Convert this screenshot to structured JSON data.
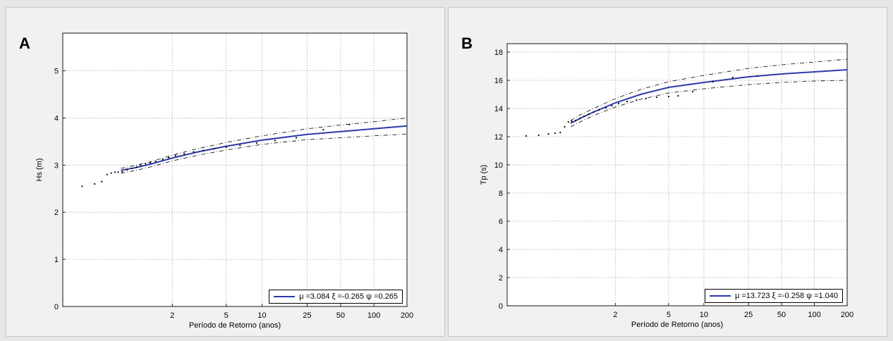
{
  "chart_data": [
    {
      "panel_label": "A",
      "type": "line",
      "title": "",
      "xlabel": "Período de Retorno (anos)",
      "ylabel": "Hs (m)",
      "x_scale": "gumbel-return-period",
      "xlim": [
        1.0,
        200
      ],
      "ylim": [
        0,
        5.8
      ],
      "xticks": [
        2,
        5,
        10,
        25,
        50,
        100,
        200
      ],
      "yticks": [
        0,
        1,
        2,
        3,
        4,
        5
      ],
      "grid": true,
      "legend_location": "bottom-right",
      "legend_text": "μ =3.084 ξ =-0.265 ψ =0.265",
      "series": [
        {
          "role": "fit",
          "style": "solid",
          "color": "#2b3aa8",
          "x": [
            1.15,
            1.3,
            1.5,
            2,
            3,
            5,
            10,
            25,
            50,
            100,
            200
          ],
          "y": [
            2.89,
            2.95,
            3.02,
            3.15,
            3.28,
            3.4,
            3.53,
            3.65,
            3.71,
            3.77,
            3.83
          ]
        },
        {
          "role": "upper-bound",
          "style": "dashed",
          "color": "#000000",
          "x": [
            1.15,
            1.3,
            1.5,
            2,
            3,
            5,
            10,
            25,
            50,
            100,
            200
          ],
          "y": [
            2.93,
            3.0,
            3.07,
            3.21,
            3.35,
            3.48,
            3.62,
            3.77,
            3.85,
            3.92,
            4.0
          ]
        },
        {
          "role": "lower-bound",
          "style": "dashed",
          "color": "#000000",
          "x": [
            1.15,
            1.3,
            1.5,
            2,
            3,
            5,
            10,
            25,
            50,
            100,
            200
          ],
          "y": [
            2.83,
            2.89,
            2.96,
            3.09,
            3.21,
            3.32,
            3.44,
            3.54,
            3.58,
            3.62,
            3.66
          ]
        },
        {
          "role": "observed",
          "style": "points",
          "color": "#000000",
          "x": [
            1.01,
            1.03,
            1.05,
            1.07,
            1.09,
            1.11,
            1.13,
            1.16,
            1.2,
            1.25,
            1.3,
            1.35,
            1.42,
            1.5,
            1.6,
            1.75,
            1.9,
            2.1,
            2.4,
            2.8,
            3.3,
            4.0,
            5.0,
            6.5,
            9.0,
            13,
            20,
            35,
            60
          ],
          "y": [
            2.55,
            2.6,
            2.65,
            2.8,
            2.83,
            2.85,
            2.85,
            2.86,
            2.9,
            2.93,
            2.96,
            3.0,
            3.03,
            3.05,
            3.08,
            3.12,
            3.16,
            3.2,
            3.24,
            3.28,
            3.31,
            3.35,
            3.38,
            3.42,
            3.47,
            3.52,
            3.58,
            3.75,
            3.86
          ]
        }
      ]
    },
    {
      "panel_label": "B",
      "type": "line",
      "title": "",
      "xlabel": "Período de Retorno (anos)",
      "ylabel": "Tp (s)",
      "x_scale": "gumbel-return-period",
      "xlim": [
        1.0,
        200
      ],
      "ylim": [
        0,
        18.6
      ],
      "xticks": [
        2,
        5,
        10,
        25,
        50,
        100,
        200
      ],
      "yticks": [
        0,
        2,
        4,
        6,
        8,
        10,
        12,
        14,
        16,
        18
      ],
      "grid": true,
      "legend_location": "bottom-right",
      "legend_text": "μ =13.723 ξ =-0.258 ψ =1.040",
      "series": [
        {
          "role": "fit",
          "style": "solid",
          "color": "#2b3aa8",
          "x": [
            1.2,
            1.3,
            1.5,
            2,
            3,
            5,
            10,
            25,
            50,
            100,
            200
          ],
          "y": [
            12.95,
            13.3,
            13.75,
            14.4,
            15.0,
            15.5,
            15.85,
            16.25,
            16.45,
            16.6,
            16.75
          ]
        },
        {
          "role": "upper-bound",
          "style": "dashed",
          "color": "#000000",
          "x": [
            1.2,
            1.3,
            1.5,
            2,
            3,
            5,
            10,
            25,
            50,
            100,
            200
          ],
          "y": [
            13.15,
            13.55,
            14.0,
            14.7,
            15.35,
            15.9,
            16.35,
            16.85,
            17.1,
            17.3,
            17.5
          ]
        },
        {
          "role": "lower-bound",
          "style": "dashed",
          "color": "#000000",
          "x": [
            1.2,
            1.3,
            1.5,
            2,
            3,
            5,
            10,
            25,
            50,
            100,
            200
          ],
          "y": [
            12.7,
            13.05,
            13.5,
            14.1,
            14.65,
            15.1,
            15.4,
            15.7,
            15.85,
            15.95,
            16.0
          ]
        },
        {
          "role": "observed",
          "style": "points",
          "color": "#000000",
          "x": [
            1.01,
            1.03,
            1.06,
            1.09,
            1.12,
            1.15,
            1.18,
            1.21,
            1.25,
            1.3,
            1.35,
            1.42,
            1.5,
            1.6,
            1.75,
            1.9,
            2.1,
            2.4,
            2.8,
            3.3,
            4.0,
            5.0,
            6.0,
            8.0,
            12,
            18,
            30
          ],
          "y": [
            12.05,
            12.1,
            12.2,
            12.25,
            12.3,
            12.7,
            13.05,
            13.1,
            13.15,
            13.3,
            13.45,
            13.6,
            13.75,
            13.9,
            14.05,
            14.2,
            14.35,
            14.5,
            14.6,
            14.7,
            14.8,
            14.85,
            14.9,
            15.2,
            15.9,
            16.2,
            16.3
          ]
        }
      ]
    }
  ]
}
